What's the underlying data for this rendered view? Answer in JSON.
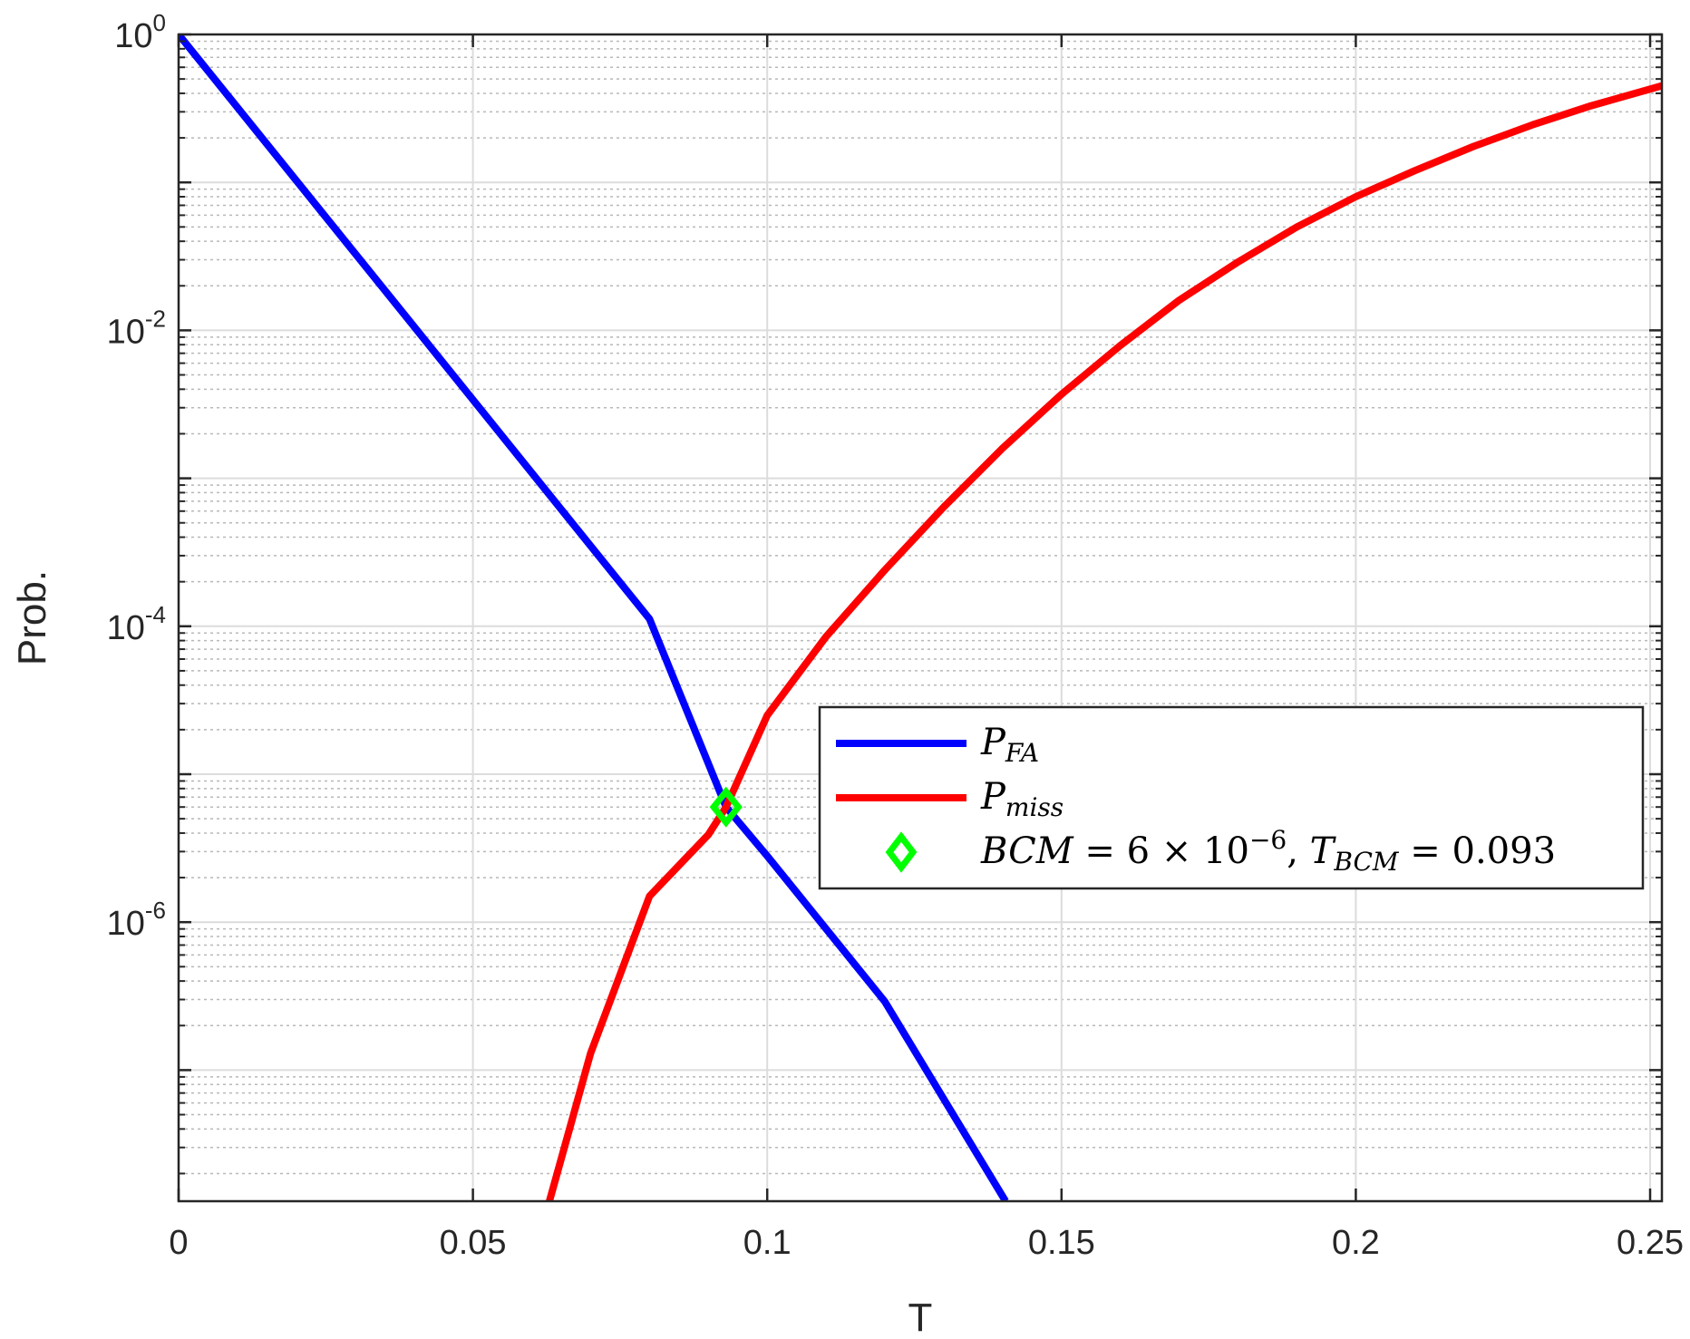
{
  "chart_data": {
    "type": "line",
    "xlabel": "T",
    "ylabel": "Prob.",
    "x_scale": "linear",
    "y_scale": "log",
    "xlim": [
      0,
      0.252
    ],
    "ylim": [
      1.3e-08,
      1
    ],
    "grid": true,
    "minor_grid": true,
    "legend_position": "center-right",
    "x_ticks": [
      {
        "value": 0,
        "label": "0"
      },
      {
        "value": 0.05,
        "label": "0.05"
      },
      {
        "value": 0.1,
        "label": "0.1"
      },
      {
        "value": 0.15,
        "label": "0.15"
      },
      {
        "value": 0.2,
        "label": "0.2"
      },
      {
        "value": 0.25,
        "label": "0.25"
      }
    ],
    "y_ticks": [
      {
        "value": 1,
        "base": "10",
        "exp": "0"
      },
      {
        "value": 0.01,
        "base": "10",
        "exp": "-2"
      },
      {
        "value": 0.0001,
        "base": "10",
        "exp": "-4"
      },
      {
        "value": 1e-06,
        "base": "10",
        "exp": "-6"
      }
    ],
    "series": [
      {
        "name": "P_FA",
        "legend": {
          "base": "P",
          "sub": "FA"
        },
        "color": "#0000ff",
        "x": [
          0,
          0.02,
          0.04,
          0.06,
          0.08,
          0.093,
          0.1,
          0.12,
          0.1405
        ],
        "y": [
          1,
          0.103,
          0.0106,
          0.00109,
          0.000112,
          6e-06,
          2.8e-06,
          2.9e-07,
          1.3e-08
        ]
      },
      {
        "name": "P_miss",
        "legend": {
          "base": "P",
          "sub": "miss"
        },
        "color": "#ff0000",
        "x": [
          0.063,
          0.07,
          0.08,
          0.09,
          0.093,
          0.1,
          0.11,
          0.12,
          0.13,
          0.14,
          0.15,
          0.16,
          0.17,
          0.18,
          0.19,
          0.2,
          0.21,
          0.22,
          0.23,
          0.24,
          0.252
        ],
        "y": [
          1.3e-08,
          1.3e-07,
          1.5e-06,
          3.9e-06,
          6e-06,
          2.5e-05,
          8.5e-05,
          0.00024,
          0.00064,
          0.0016,
          0.0037,
          0.0079,
          0.016,
          0.029,
          0.05,
          0.08,
          0.12,
          0.175,
          0.245,
          0.33,
          0.45
        ]
      }
    ],
    "marker": {
      "name": "BCM",
      "color": "#00ff00",
      "x": 0.093,
      "y": 6e-06,
      "legend_text": "BCM = 6 × 10⁻⁶, T_BCM = 0.093",
      "legend_parts": {
        "bcm": "BCM",
        "eq1": " = 6 × 10",
        "exp": "−6",
        "comma": ", ",
        "t": "T",
        "t_sub": "BCM",
        "eq2": " = 0.093"
      }
    }
  }
}
